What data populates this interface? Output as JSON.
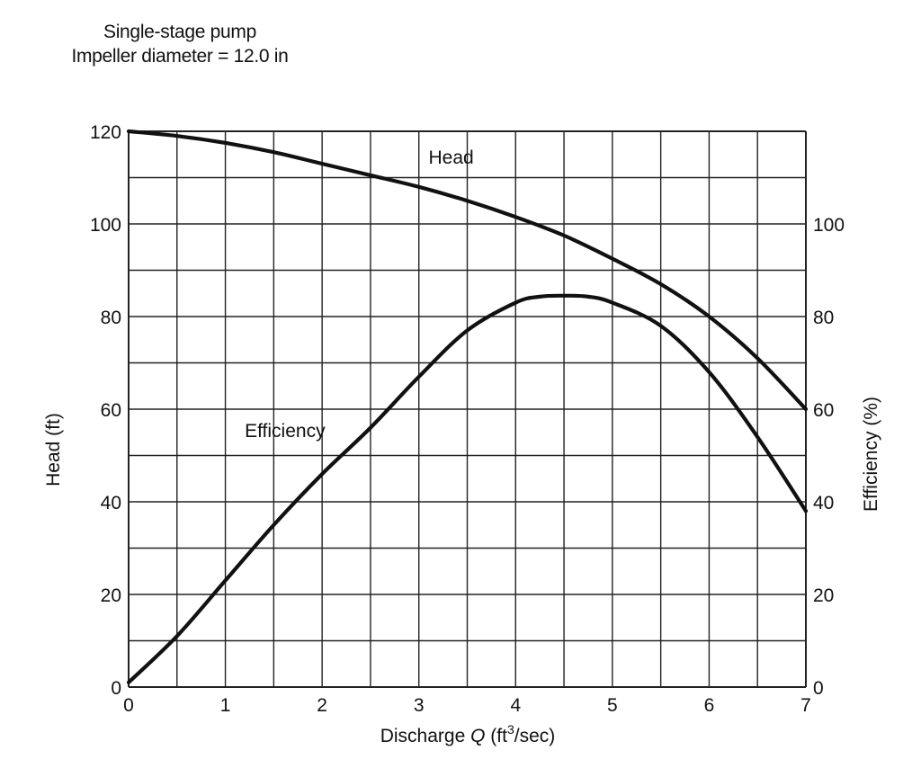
{
  "chart_data": {
    "type": "line",
    "title": "Single-stage pump",
    "subtitle": "Impeller diameter = 12.0 in",
    "xlabel_prefix": "Discharge ",
    "xlabel_var": "Q",
    "xlabel_unit_open": " (ft",
    "xlabel_unit_sup": "3",
    "xlabel_unit_close": "/sec)",
    "ylabel": "Head (ft)",
    "y2label": "Efficiency (%)",
    "xlim": [
      0,
      7
    ],
    "ylim": [
      0,
      120
    ],
    "y2lim": [
      0,
      120
    ],
    "x_ticks": [
      0,
      1,
      2,
      3,
      4,
      5,
      6,
      7
    ],
    "y_ticks": [
      0,
      20,
      40,
      60,
      80,
      100,
      120
    ],
    "y2_ticks": [
      0,
      20,
      40,
      60,
      80,
      100
    ],
    "grid": true,
    "grid_step_x": 0.5,
    "grid_step_y": 10,
    "series": [
      {
        "name": "Head",
        "axis": "left",
        "x": [
          0,
          0.5,
          1,
          1.5,
          2,
          2.5,
          3,
          3.5,
          4,
          4.5,
          5,
          5.5,
          6,
          6.5,
          7
        ],
        "y": [
          120,
          119,
          117.5,
          115.5,
          113,
          110.5,
          108,
          105,
          101.5,
          97.5,
          92.5,
          87,
          80,
          71,
          60
        ]
      },
      {
        "name": "Efficiency",
        "axis": "right",
        "x": [
          0,
          0.5,
          1,
          1.5,
          2,
          2.5,
          3,
          3.5,
          4,
          4.25,
          4.5,
          4.75,
          5,
          5.5,
          6,
          6.5,
          7
        ],
        "y": [
          1,
          11,
          23,
          35,
          46,
          56,
          67,
          77,
          83,
          84.3,
          84.5,
          84.3,
          83,
          78,
          68,
          54,
          38
        ]
      }
    ],
    "annotations": [
      {
        "text": "Head",
        "x": 3.1,
        "y": 113
      },
      {
        "text": "Efficiency",
        "x": 1.2,
        "y": 54
      }
    ]
  }
}
